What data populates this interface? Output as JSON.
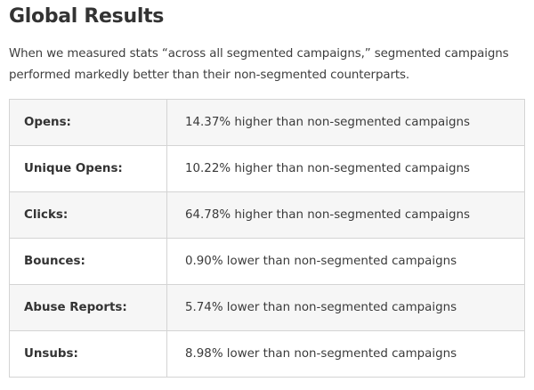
{
  "heading": "Global Results",
  "intro": "When we measured stats “across all segmented campaigns,” segmented campaigns performed markedly better than their non-segmented counterparts.",
  "results": [
    {
      "metric": "Opens:",
      "value": "14.37% higher than non-segmented campaigns"
    },
    {
      "metric": "Unique Opens:",
      "value": "10.22% higher than non-segmented campaigns"
    },
    {
      "metric": "Clicks:",
      "value": "64.78% higher than non-segmented campaigns"
    },
    {
      "metric": "Bounces:",
      "value": "0.90% lower than non-segmented campaigns"
    },
    {
      "metric": "Abuse Reports:",
      "value": "5.74% lower than non-segmented campaigns"
    },
    {
      "metric": "Unsubs:",
      "value": "8.98% lower than non-segmented campaigns"
    }
  ]
}
